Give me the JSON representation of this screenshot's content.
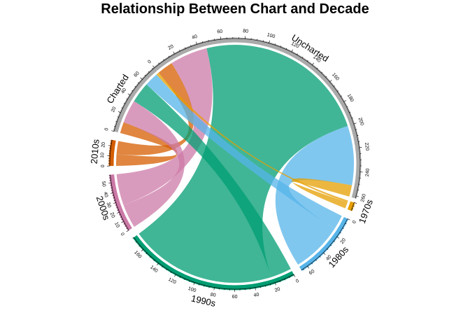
{
  "chart_data": {
    "type": "chord",
    "title": "Relationship Between Chart and Decade",
    "sectors": [
      {
        "name": "Uncharted",
        "total": 262,
        "color": "#aaaaaa",
        "tick_step": 20,
        "tick_labels": [
          "0",
          "20",
          "40",
          "60",
          "80",
          "100",
          "120",
          "140",
          "160",
          "180",
          "200",
          "220",
          "240",
          "260"
        ]
      },
      {
        "name": "1970s",
        "total": 13,
        "color": "#e69f00",
        "tick_step": 20,
        "tick_labels": []
      },
      {
        "name": "1980s",
        "total": 67,
        "color": "#56b4e9",
        "tick_step": 20,
        "tick_labels": [
          "0",
          "20",
          "40",
          "60"
        ]
      },
      {
        "name": "1990s",
        "total": 175,
        "color": "#009e73",
        "tick_step": 20,
        "tick_labels": [
          "0",
          "20",
          "40",
          "60",
          "80",
          "100",
          "120",
          "140",
          "160"
        ]
      },
      {
        "name": "2000s",
        "total": 58,
        "color": "#cc79a7",
        "tick_step": 10,
        "tick_labels": [
          "0",
          "10",
          "20",
          "30",
          "40",
          "50"
        ]
      },
      {
        "name": "2010s",
        "total": 26,
        "color": "#d55e00",
        "tick_step": 10,
        "tick_labels": [
          "0",
          "10",
          "20"
        ]
      },
      {
        "name": "Charted",
        "total": 77,
        "color": "#aaaaaa",
        "tick_step": 20,
        "tick_labels": [
          "0",
          "20",
          "40",
          "60"
        ]
      }
    ],
    "links": [
      {
        "from": "Uncharted",
        "to": "1970s",
        "value": 10
      },
      {
        "from": "Uncharted",
        "to": "1980s",
        "value": 52
      },
      {
        "from": "Uncharted",
        "to": "1990s",
        "value": 153
      },
      {
        "from": "Uncharted",
        "to": "2000s",
        "value": 33
      },
      {
        "from": "Uncharted",
        "to": "2010s",
        "value": 14
      },
      {
        "from": "Charted",
        "to": "1970s",
        "value": 3
      },
      {
        "from": "Charted",
        "to": "1980s",
        "value": 15
      },
      {
        "from": "Charted",
        "to": "1990s",
        "value": 22
      },
      {
        "from": "Charted",
        "to": "2000s",
        "value": 25
      },
      {
        "from": "Charted",
        "to": "2010s",
        "value": 12
      }
    ]
  }
}
